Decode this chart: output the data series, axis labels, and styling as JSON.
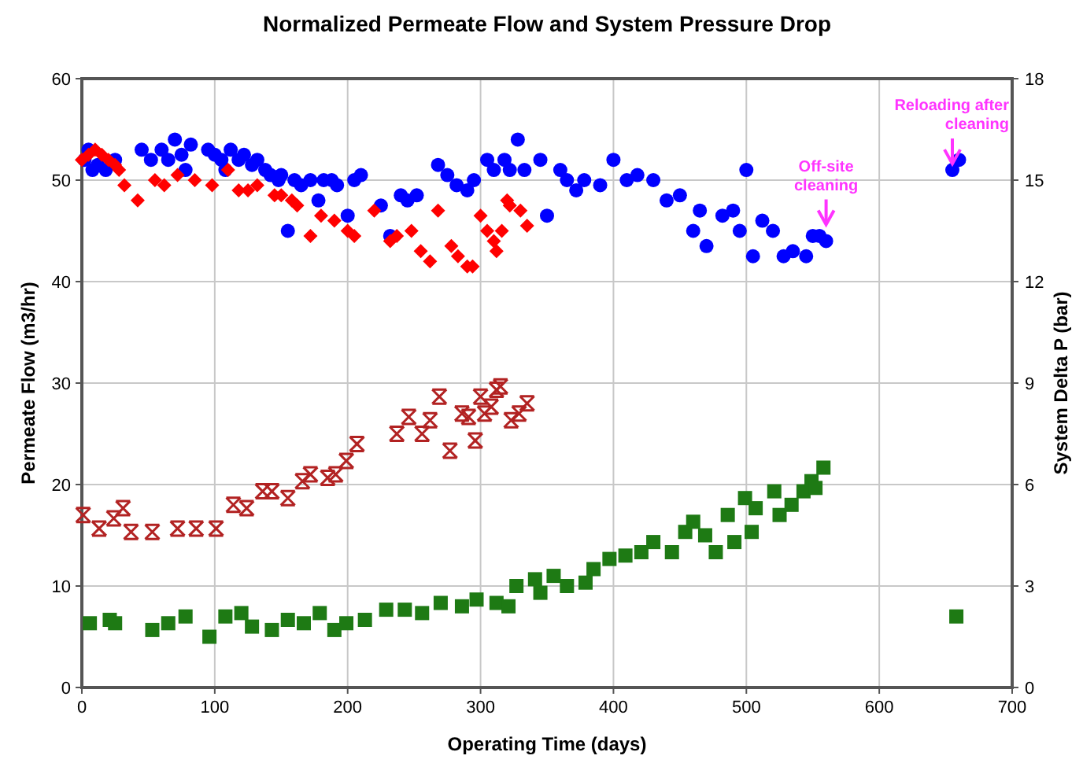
{
  "chart_data": {
    "type": "scatter",
    "title": "Normalized Permeate Flow and System Pressure Drop",
    "xlabel": "Operating Time (days)",
    "ylabel": "Permeate Flow (m3/hr)",
    "y2label": "System Delta P (bar)",
    "xlim": [
      0,
      700
    ],
    "xticks": [
      0,
      100,
      200,
      300,
      400,
      500,
      600,
      700
    ],
    "ylim": [
      0,
      60
    ],
    "yticks": [
      0,
      10,
      20,
      30,
      40,
      50,
      60
    ],
    "y2lim": [
      0,
      18
    ],
    "y2ticks": [
      0,
      3,
      6,
      9,
      12,
      15,
      18
    ],
    "grid": true,
    "annotations": [
      {
        "text": "Off-site cleaning",
        "x": 560,
        "y": 45
      },
      {
        "text": "Reloading after cleaning",
        "x": 655,
        "y": 51
      }
    ],
    "series": [
      {
        "color": "#0000ff",
        "marker": "circle",
        "x": [
          2,
          5,
          8,
          12,
          18,
          25,
          45,
          52,
          60,
          65,
          70,
          75,
          78,
          82,
          95,
          100,
          105,
          108,
          112,
          118,
          122,
          128,
          132,
          138,
          142,
          148,
          150,
          155,
          160,
          165,
          172,
          178,
          182,
          188,
          192,
          200,
          205,
          210,
          225,
          232,
          240,
          245,
          252,
          268,
          275,
          282,
          290,
          295,
          305,
          310,
          318,
          322,
          328,
          333,
          345,
          350,
          360,
          365,
          372,
          378,
          390,
          400,
          410,
          418,
          430,
          440,
          450,
          460,
          465,
          470,
          482,
          490,
          495,
          500,
          505,
          512,
          520,
          528,
          535,
          545,
          550,
          555,
          560,
          655,
          660
        ],
        "values": [
          52,
          53,
          51,
          51.5,
          51,
          52,
          53,
          52,
          53,
          52,
          54,
          52.5,
          51,
          53.5,
          53,
          52.5,
          52,
          51,
          53,
          52,
          52.5,
          51.5,
          52,
          51,
          50.5,
          50,
          50.5,
          45,
          50,
          49.5,
          50,
          48,
          50,
          50,
          49.5,
          46.5,
          50,
          50.5,
          47.5,
          44.5,
          48.5,
          48,
          48.5,
          51.5,
          50.5,
          49.5,
          49,
          50,
          52,
          51,
          52,
          51,
          54,
          51,
          52,
          46.5,
          51,
          50,
          49,
          50,
          49.5,
          52,
          50,
          50.5,
          50,
          48,
          48.5,
          45,
          47,
          43.5,
          46.5,
          47,
          45,
          51,
          42.5,
          46,
          45,
          42.5,
          43,
          42.5,
          44.5,
          44.5,
          44,
          51,
          52
        ]
      },
      {
        "color": "#ff0000",
        "marker": "diamond",
        "x": [
          0,
          5,
          10,
          15,
          20,
          25,
          28,
          32,
          42,
          55,
          62,
          72,
          85,
          98,
          110,
          118,
          125,
          132,
          145,
          150,
          158,
          162,
          172,
          180,
          190,
          200,
          205,
          220,
          232,
          237,
          248,
          255,
          262,
          268,
          278,
          283,
          290,
          294,
          300,
          305,
          310,
          312,
          316,
          320,
          322,
          330,
          335
        ],
        "values": [
          52,
          52.5,
          53,
          52.5,
          52,
          51.5,
          51,
          49.5,
          48,
          50,
          49.5,
          50.5,
          50,
          49.5,
          51,
          49,
          49,
          49.5,
          48.5,
          48.5,
          48,
          47.5,
          44.5,
          46.5,
          46,
          45,
          44.5,
          47,
          44,
          44.5,
          45,
          43,
          42,
          47,
          43.5,
          42.5,
          41.5,
          41.5,
          46.5,
          45,
          44,
          43,
          45,
          48,
          47.5,
          47,
          45.5
        ]
      },
      {
        "color": "#1e7a14",
        "marker": "square",
        "axis": "y2",
        "x": [
          6,
          21,
          25,
          53,
          65,
          78,
          96,
          108,
          120,
          128,
          143,
          155,
          167,
          179,
          190,
          199,
          213,
          229,
          243,
          256,
          270,
          286,
          297,
          312,
          321,
          327,
          341,
          345,
          355,
          365,
          379,
          385,
          397,
          409,
          421,
          430,
          444,
          454,
          460,
          469,
          477,
          486,
          491,
          499,
          504,
          507,
          521,
          525,
          534,
          543,
          549,
          552,
          558,
          658
        ],
        "values": [
          1.9,
          2.0,
          1.9,
          1.7,
          1.9,
          2.1,
          1.5,
          2.1,
          2.2,
          1.8,
          1.7,
          2.0,
          1.9,
          2.2,
          1.7,
          1.9,
          2.0,
          2.3,
          2.3,
          2.2,
          2.5,
          2.4,
          2.6,
          2.5,
          2.4,
          3.0,
          3.2,
          2.8,
          3.3,
          3.0,
          3.1,
          3.5,
          3.8,
          3.9,
          4.0,
          4.3,
          4.0,
          4.6,
          4.9,
          4.5,
          4.0,
          5.1,
          4.3,
          5.6,
          4.6,
          5.3,
          5.8,
          5.1,
          5.4,
          5.8,
          6.1,
          5.9,
          6.5,
          2.1
        ]
      },
      {
        "color": "#b22222",
        "marker": "cross",
        "axis": "y2",
        "x": [
          1,
          13,
          24,
          31,
          37,
          53,
          72,
          86,
          101,
          114,
          124,
          136,
          143,
          155,
          166,
          172,
          185,
          191,
          199,
          207,
          237,
          246,
          256,
          262,
          269,
          277,
          286,
          291,
          296,
          300,
          303,
          308,
          312,
          315,
          323,
          329,
          335
        ],
        "values": [
          5.1,
          4.7,
          5.0,
          5.3,
          4.6,
          4.6,
          4.7,
          4.7,
          4.7,
          5.4,
          5.3,
          5.8,
          5.8,
          5.6,
          6.1,
          6.3,
          6.2,
          6.3,
          6.7,
          7.2,
          7.5,
          8.0,
          7.5,
          7.9,
          8.6,
          7.0,
          8.1,
          8.0,
          7.3,
          8.6,
          8.1,
          8.3,
          8.8,
          8.9,
          7.9,
          8.1,
          8.4
        ]
      }
    ]
  }
}
